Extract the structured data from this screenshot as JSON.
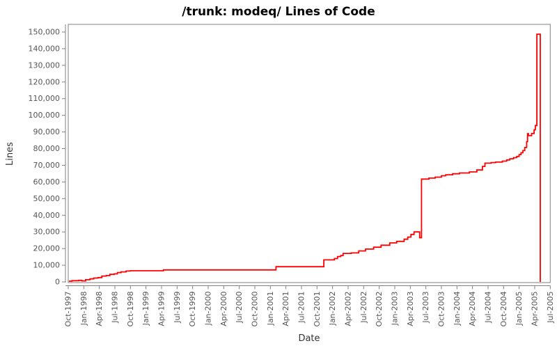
{
  "window": {
    "background": "#ffffff"
  },
  "chart_data": {
    "type": "line",
    "style": "step-after",
    "title": "/trunk: modeq/ Lines of Code",
    "xlabel": "Date",
    "ylabel": "Lines",
    "grid": false,
    "legend": "none",
    "line_color": "#ff0000",
    "axis_color": "#808080",
    "tick_label_color": "#555555",
    "axis_title_color": "#333333",
    "title_color": "#000000",
    "plot_background": "#ffffff",
    "ylim": [
      0,
      155000
    ],
    "y_ticks": [
      0,
      10000,
      20000,
      30000,
      40000,
      50000,
      60000,
      70000,
      80000,
      90000,
      100000,
      110000,
      120000,
      130000,
      140000,
      150000
    ],
    "y_tick_labels": [
      "0",
      "10,000",
      "20,000",
      "30,000",
      "40,000",
      "50,000",
      "60,000",
      "70,000",
      "80,000",
      "90,000",
      "100,000",
      "110,000",
      "120,000",
      "130,000",
      "140,000",
      "150,000"
    ],
    "x_tick_labels": [
      "Oct-1997",
      "Jan-1998",
      "Apr-1998",
      "Jul-1998",
      "Oct-1998",
      "Jan-1999",
      "Apr-1999",
      "Jul-1999",
      "Oct-1999",
      "Jan-2000",
      "Apr-2000",
      "Jul-2000",
      "Oct-2000",
      "Jan-2001",
      "Apr-2001",
      "Jul-2001",
      "Oct-2001",
      "Jan-2002",
      "Apr-2002",
      "Jul-2002",
      "Oct-2002",
      "Jan-2003",
      "Apr-2003",
      "Jul-2003",
      "Oct-2003",
      "Jan-2004",
      "Apr-2004",
      "Jul-2004",
      "Oct-2004",
      "Jan-2005",
      "Apr-2005",
      "Jul-2005"
    ],
    "x_start_year": 1997.75,
    "x_tick_interval_years": 0.25,
    "series_name": "Lines of Code",
    "points": [
      [
        1997.76,
        400
      ],
      [
        1997.81,
        700
      ],
      [
        1997.92,
        900
      ],
      [
        1997.97,
        600
      ],
      [
        1998.03,
        1300
      ],
      [
        1998.1,
        1800
      ],
      [
        1998.16,
        2300
      ],
      [
        1998.23,
        2600
      ],
      [
        1998.29,
        3500
      ],
      [
        1998.36,
        3800
      ],
      [
        1998.42,
        4500
      ],
      [
        1998.49,
        4800
      ],
      [
        1998.54,
        5600
      ],
      [
        1998.6,
        6000
      ],
      [
        1998.68,
        6500
      ],
      [
        1998.75,
        6700
      ],
      [
        1999.28,
        7200
      ],
      [
        2001.09,
        9100
      ],
      [
        2001.86,
        13200
      ],
      [
        2002.03,
        14000
      ],
      [
        2002.08,
        15200
      ],
      [
        2002.13,
        15800
      ],
      [
        2002.17,
        17100
      ],
      [
        2002.3,
        17400
      ],
      [
        2002.42,
        18600
      ],
      [
        2002.53,
        19700
      ],
      [
        2002.66,
        20800
      ],
      [
        2002.78,
        22000
      ],
      [
        2002.92,
        23400
      ],
      [
        2003.03,
        24300
      ],
      [
        2003.15,
        25600
      ],
      [
        2003.21,
        26900
      ],
      [
        2003.26,
        28500
      ],
      [
        2003.31,
        30000
      ],
      [
        2003.4,
        26500
      ],
      [
        2003.43,
        61700
      ],
      [
        2003.55,
        62300
      ],
      [
        2003.65,
        62900
      ],
      [
        2003.75,
        63700
      ],
      [
        2003.82,
        64300
      ],
      [
        2003.93,
        64900
      ],
      [
        2004.04,
        65400
      ],
      [
        2004.2,
        66000
      ],
      [
        2004.32,
        67200
      ],
      [
        2004.41,
        69300
      ],
      [
        2004.45,
        71300
      ],
      [
        2004.55,
        71600
      ],
      [
        2004.62,
        71900
      ],
      [
        2004.73,
        72500
      ],
      [
        2004.8,
        73200
      ],
      [
        2004.85,
        73900
      ],
      [
        2004.91,
        74600
      ],
      [
        2004.96,
        75300
      ],
      [
        2005.0,
        76400
      ],
      [
        2005.03,
        77500
      ],
      [
        2005.06,
        78800
      ],
      [
        2005.09,
        80700
      ],
      [
        2005.12,
        84200
      ],
      [
        2005.135,
        89000
      ],
      [
        2005.15,
        87800
      ],
      [
        2005.2,
        89100
      ],
      [
        2005.24,
        91300
      ],
      [
        2005.26,
        93900
      ],
      [
        2005.285,
        148700
      ],
      [
        2005.34,
        0
      ]
    ]
  }
}
